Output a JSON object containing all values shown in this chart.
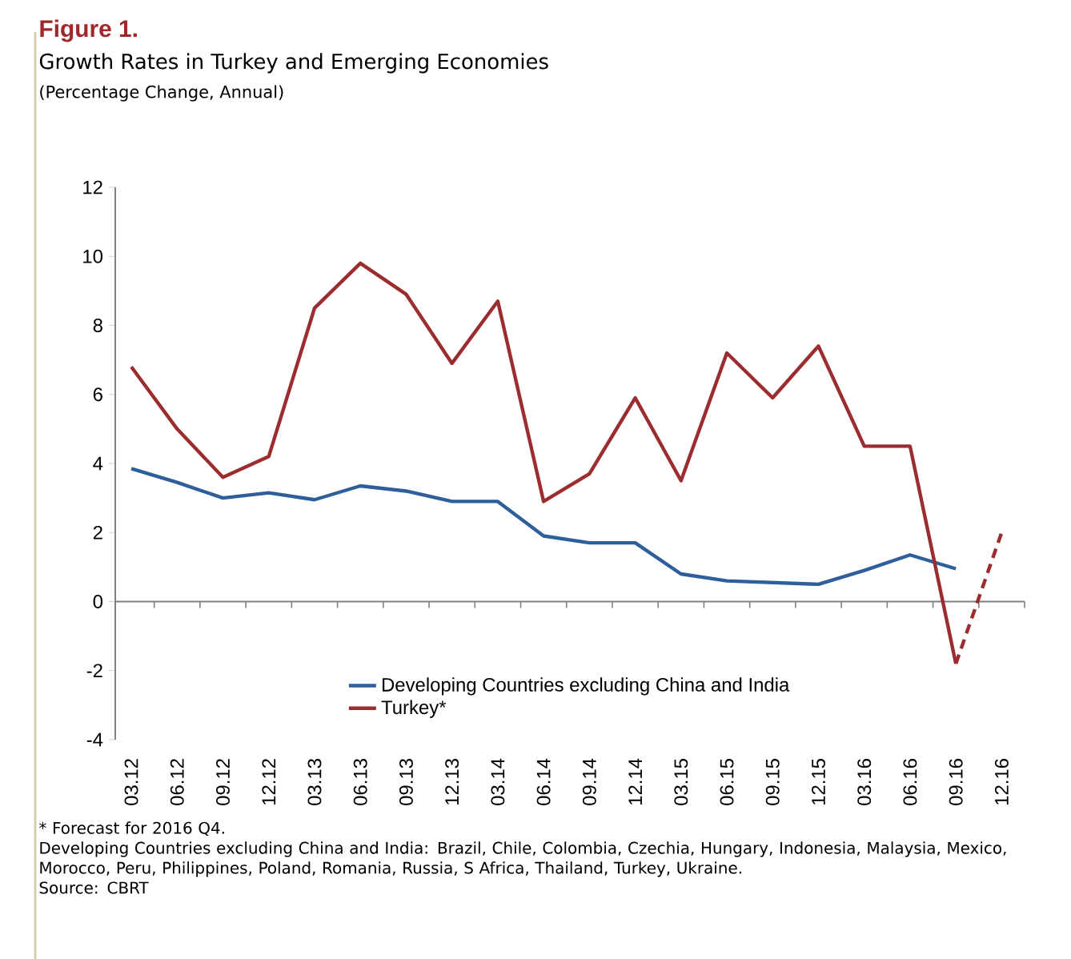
{
  "chart_data": {
    "type": "line",
    "title": "Figure 1.",
    "subtitle": "Growth Rates in Turkey and Emerging Economies",
    "annotations": [
      "(Percentage Change, Annual)",
      "* Forecast for 2016 Q4.",
      "Developing Countries excluding China and India: Brazil, Chile, Colombia, Czechia, Hungary, Indonesia, Malaysia, Mexico, Morocco, Peru, Philippines, Poland, Romania, Russia, S Africa, Thailand, Turkey, Ukraine.",
      "Source: CBRT"
    ],
    "categories": [
      "03.12",
      "06.12",
      "09.12",
      "12.12",
      "03.13",
      "06.13",
      "09.13",
      "12.13",
      "03.14",
      "06.14",
      "09.14",
      "12.14",
      "03.15",
      "06.15",
      "09.15",
      "12.15",
      "03.16",
      "06.16",
      "09.16",
      "12.16"
    ],
    "series": [
      {
        "name": "Developing Countries excluding China and India",
        "color": "#2e5f9a",
        "values": [
          3.85,
          3.45,
          3.0,
          3.15,
          2.95,
          3.35,
          3.2,
          2.9,
          2.9,
          1.9,
          1.7,
          1.7,
          0.8,
          0.6,
          0.55,
          0.5,
          0.9,
          1.35,
          0.95,
          null
        ]
      },
      {
        "name": "Turkey*",
        "color": "#9b2d30",
        "values": [
          6.8,
          5.0,
          3.6,
          4.2,
          8.5,
          9.8,
          8.9,
          6.9,
          8.7,
          2.9,
          3.7,
          5.9,
          3.5,
          7.2,
          5.9,
          7.4,
          4.5,
          4.5,
          -1.8,
          null
        ]
      },
      {
        "color": "#9b2d30",
        "line_style": "dashed",
        "values": [
          null,
          null,
          null,
          null,
          null,
          null,
          null,
          null,
          null,
          null,
          null,
          null,
          null,
          null,
          null,
          null,
          null,
          null,
          -1.8,
          2.0
        ]
      }
    ],
    "ylim": [
      -4,
      12
    ],
    "yticks": [
      -4,
      -2,
      0,
      2,
      4,
      6,
      8,
      10,
      12
    ],
    "legend": "bottom",
    "marker": "none",
    "line_style": "solid"
  }
}
